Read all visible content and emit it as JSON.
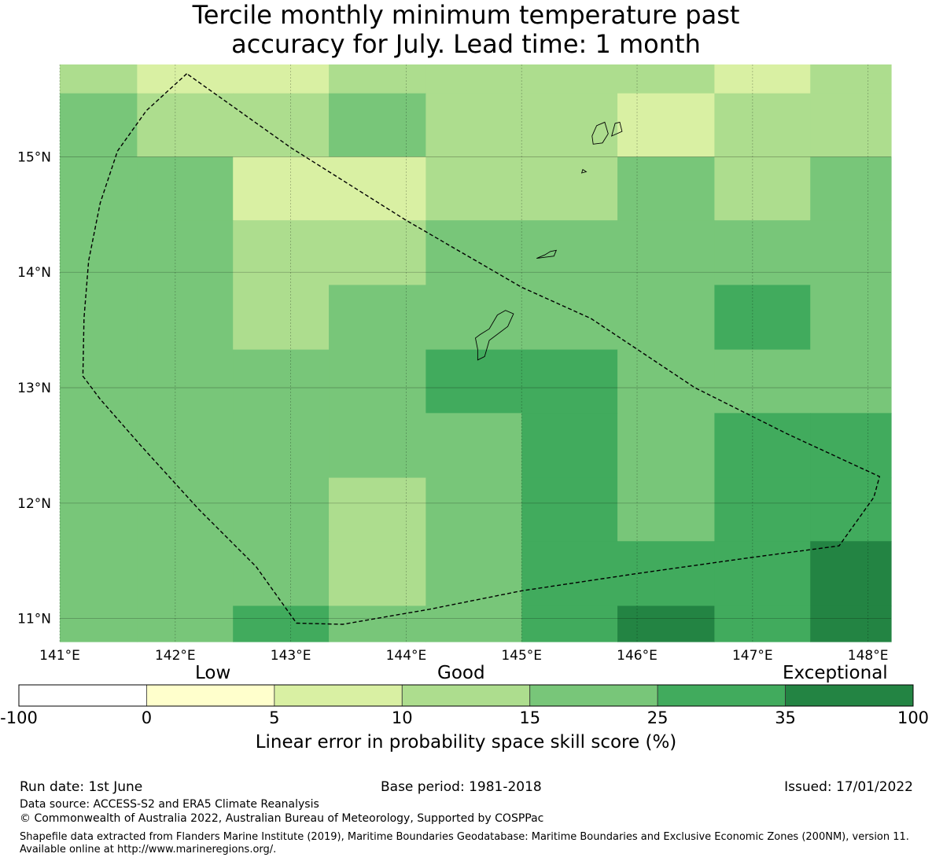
{
  "title": {
    "line1": "Tercile monthly minimum temperature past",
    "line2": "accuracy for July. Lead time: 1 month"
  },
  "map": {
    "lon_range": [
      141.0,
      148.2
    ],
    "lat_range": [
      10.8,
      15.8
    ],
    "lon_ticks": [
      141,
      142,
      143,
      144,
      145,
      146,
      147,
      148
    ],
    "lat_ticks": [
      11,
      12,
      13,
      14,
      15
    ],
    "lon_tick_labels": [
      "141°E",
      "142°E",
      "143°E",
      "144°E",
      "145°E",
      "146°E",
      "147°E",
      "148°E"
    ],
    "lat_tick_labels": [
      "11°N",
      "12°N",
      "13°N",
      "14°N",
      "15°N"
    ],
    "grid_on": true,
    "grid": {
      "col_lon_edges": [
        141.0,
        141.67,
        142.5,
        143.33,
        144.17,
        145.0,
        145.83,
        146.67,
        147.5,
        148.2
      ],
      "row_lat_edges": [
        15.8,
        15.55,
        15.0,
        14.45,
        13.89,
        13.33,
        12.78,
        12.22,
        11.67,
        11.11,
        10.8
      ],
      "classes": [
        [
          3,
          2,
          2,
          3,
          3,
          3,
          3,
          2,
          3
        ],
        [
          4,
          3,
          3,
          4,
          3,
          3,
          2,
          3,
          3
        ],
        [
          4,
          4,
          2,
          2,
          3,
          3,
          4,
          3,
          4
        ],
        [
          4,
          4,
          3,
          3,
          4,
          4,
          4,
          4,
          4
        ],
        [
          4,
          4,
          3,
          4,
          4,
          4,
          4,
          5,
          4
        ],
        [
          4,
          4,
          4,
          4,
          5,
          5,
          4,
          4,
          4
        ],
        [
          4,
          4,
          4,
          4,
          4,
          5,
          4,
          5,
          5
        ],
        [
          4,
          4,
          4,
          3,
          4,
          5,
          4,
          5,
          5
        ],
        [
          4,
          4,
          4,
          3,
          4,
          5,
          5,
          5,
          6
        ],
        [
          4,
          4,
          5,
          4,
          4,
          5,
          6,
          5,
          6
        ]
      ]
    },
    "eez_boundary": [
      [
        142.1,
        15.72
      ],
      [
        141.75,
        15.4
      ],
      [
        141.5,
        15.05
      ],
      [
        141.35,
        14.6
      ],
      [
        141.25,
        14.1
      ],
      [
        141.21,
        13.6
      ],
      [
        141.2,
        13.1
      ],
      [
        141.35,
        12.9
      ],
      [
        141.7,
        12.5
      ],
      [
        142.2,
        11.95
      ],
      [
        142.7,
        11.45
      ],
      [
        143.05,
        10.96
      ],
      [
        143.45,
        10.95
      ],
      [
        144.2,
        11.08
      ],
      [
        145.0,
        11.24
      ],
      [
        146.0,
        11.39
      ],
      [
        147.0,
        11.53
      ],
      [
        147.75,
        11.63
      ],
      [
        148.05,
        12.05
      ],
      [
        148.1,
        12.23
      ],
      [
        147.3,
        12.6
      ],
      [
        146.5,
        13.0
      ],
      [
        145.6,
        13.6
      ],
      [
        145.0,
        13.87
      ],
      [
        144.0,
        14.45
      ],
      [
        143.0,
        15.08
      ],
      [
        142.1,
        15.72
      ]
    ],
    "islands": [
      [
        [
          144.62,
          13.24
        ],
        [
          144.68,
          13.27
        ],
        [
          144.72,
          13.41
        ],
        [
          144.88,
          13.53
        ],
        [
          144.93,
          13.64
        ],
        [
          144.86,
          13.67
        ],
        [
          144.79,
          13.63
        ],
        [
          144.72,
          13.51
        ],
        [
          144.64,
          13.46
        ],
        [
          144.6,
          13.43
        ],
        [
          144.62,
          13.33
        ],
        [
          144.62,
          13.24
        ]
      ],
      [
        [
          145.13,
          14.12
        ],
        [
          145.2,
          14.15
        ],
        [
          145.25,
          14.18
        ],
        [
          145.3,
          14.19
        ],
        [
          145.28,
          14.14
        ],
        [
          145.2,
          14.13
        ],
        [
          145.13,
          14.12
        ]
      ],
      [
        [
          145.62,
          15.11
        ],
        [
          145.7,
          15.12
        ],
        [
          145.75,
          15.2
        ],
        [
          145.72,
          15.3
        ],
        [
          145.65,
          15.27
        ],
        [
          145.61,
          15.18
        ],
        [
          145.62,
          15.11
        ]
      ],
      [
        [
          145.78,
          15.18
        ],
        [
          145.87,
          15.22
        ],
        [
          145.85,
          15.3
        ],
        [
          145.81,
          15.29
        ],
        [
          145.78,
          15.18
        ]
      ],
      [
        [
          145.52,
          14.86
        ],
        [
          145.56,
          14.87
        ],
        [
          145.53,
          14.89
        ],
        [
          145.52,
          14.86
        ]
      ]
    ]
  },
  "colorbar": {
    "boundaries": [
      "-100",
      "0",
      "5",
      "10",
      "15",
      "25",
      "35",
      "100"
    ],
    "colors": [
      "#ffffff",
      "#ffffcc",
      "#d9f0a3",
      "#addd8e",
      "#78c679",
      "#41ab5d",
      "#238443"
    ],
    "words": {
      "low": "Low",
      "good": "Good",
      "exceptional": "Exceptional"
    },
    "label": "Linear error in probability space skill score (%)"
  },
  "footer": {
    "run_date": "Run date: 1st June",
    "base_period": "Base period: 1981-2018",
    "issued": "Issued: 17/01/2022",
    "data_source": "Data source: ACCESS-S2 and ERA5 Climate Reanalysis",
    "copyright": "© Commonwealth of Australia 2022, Australian Bureau of Meteorology, Supported by COSPPac",
    "shapefile": "Shapefile data extracted from Flanders Marine Institute (2019), Maritime Boundaries Geodatabase: Maritime Boundaries and Exclusive Economic Zones (200NM), version 11. Available online at http://www.marineregions.org/."
  }
}
